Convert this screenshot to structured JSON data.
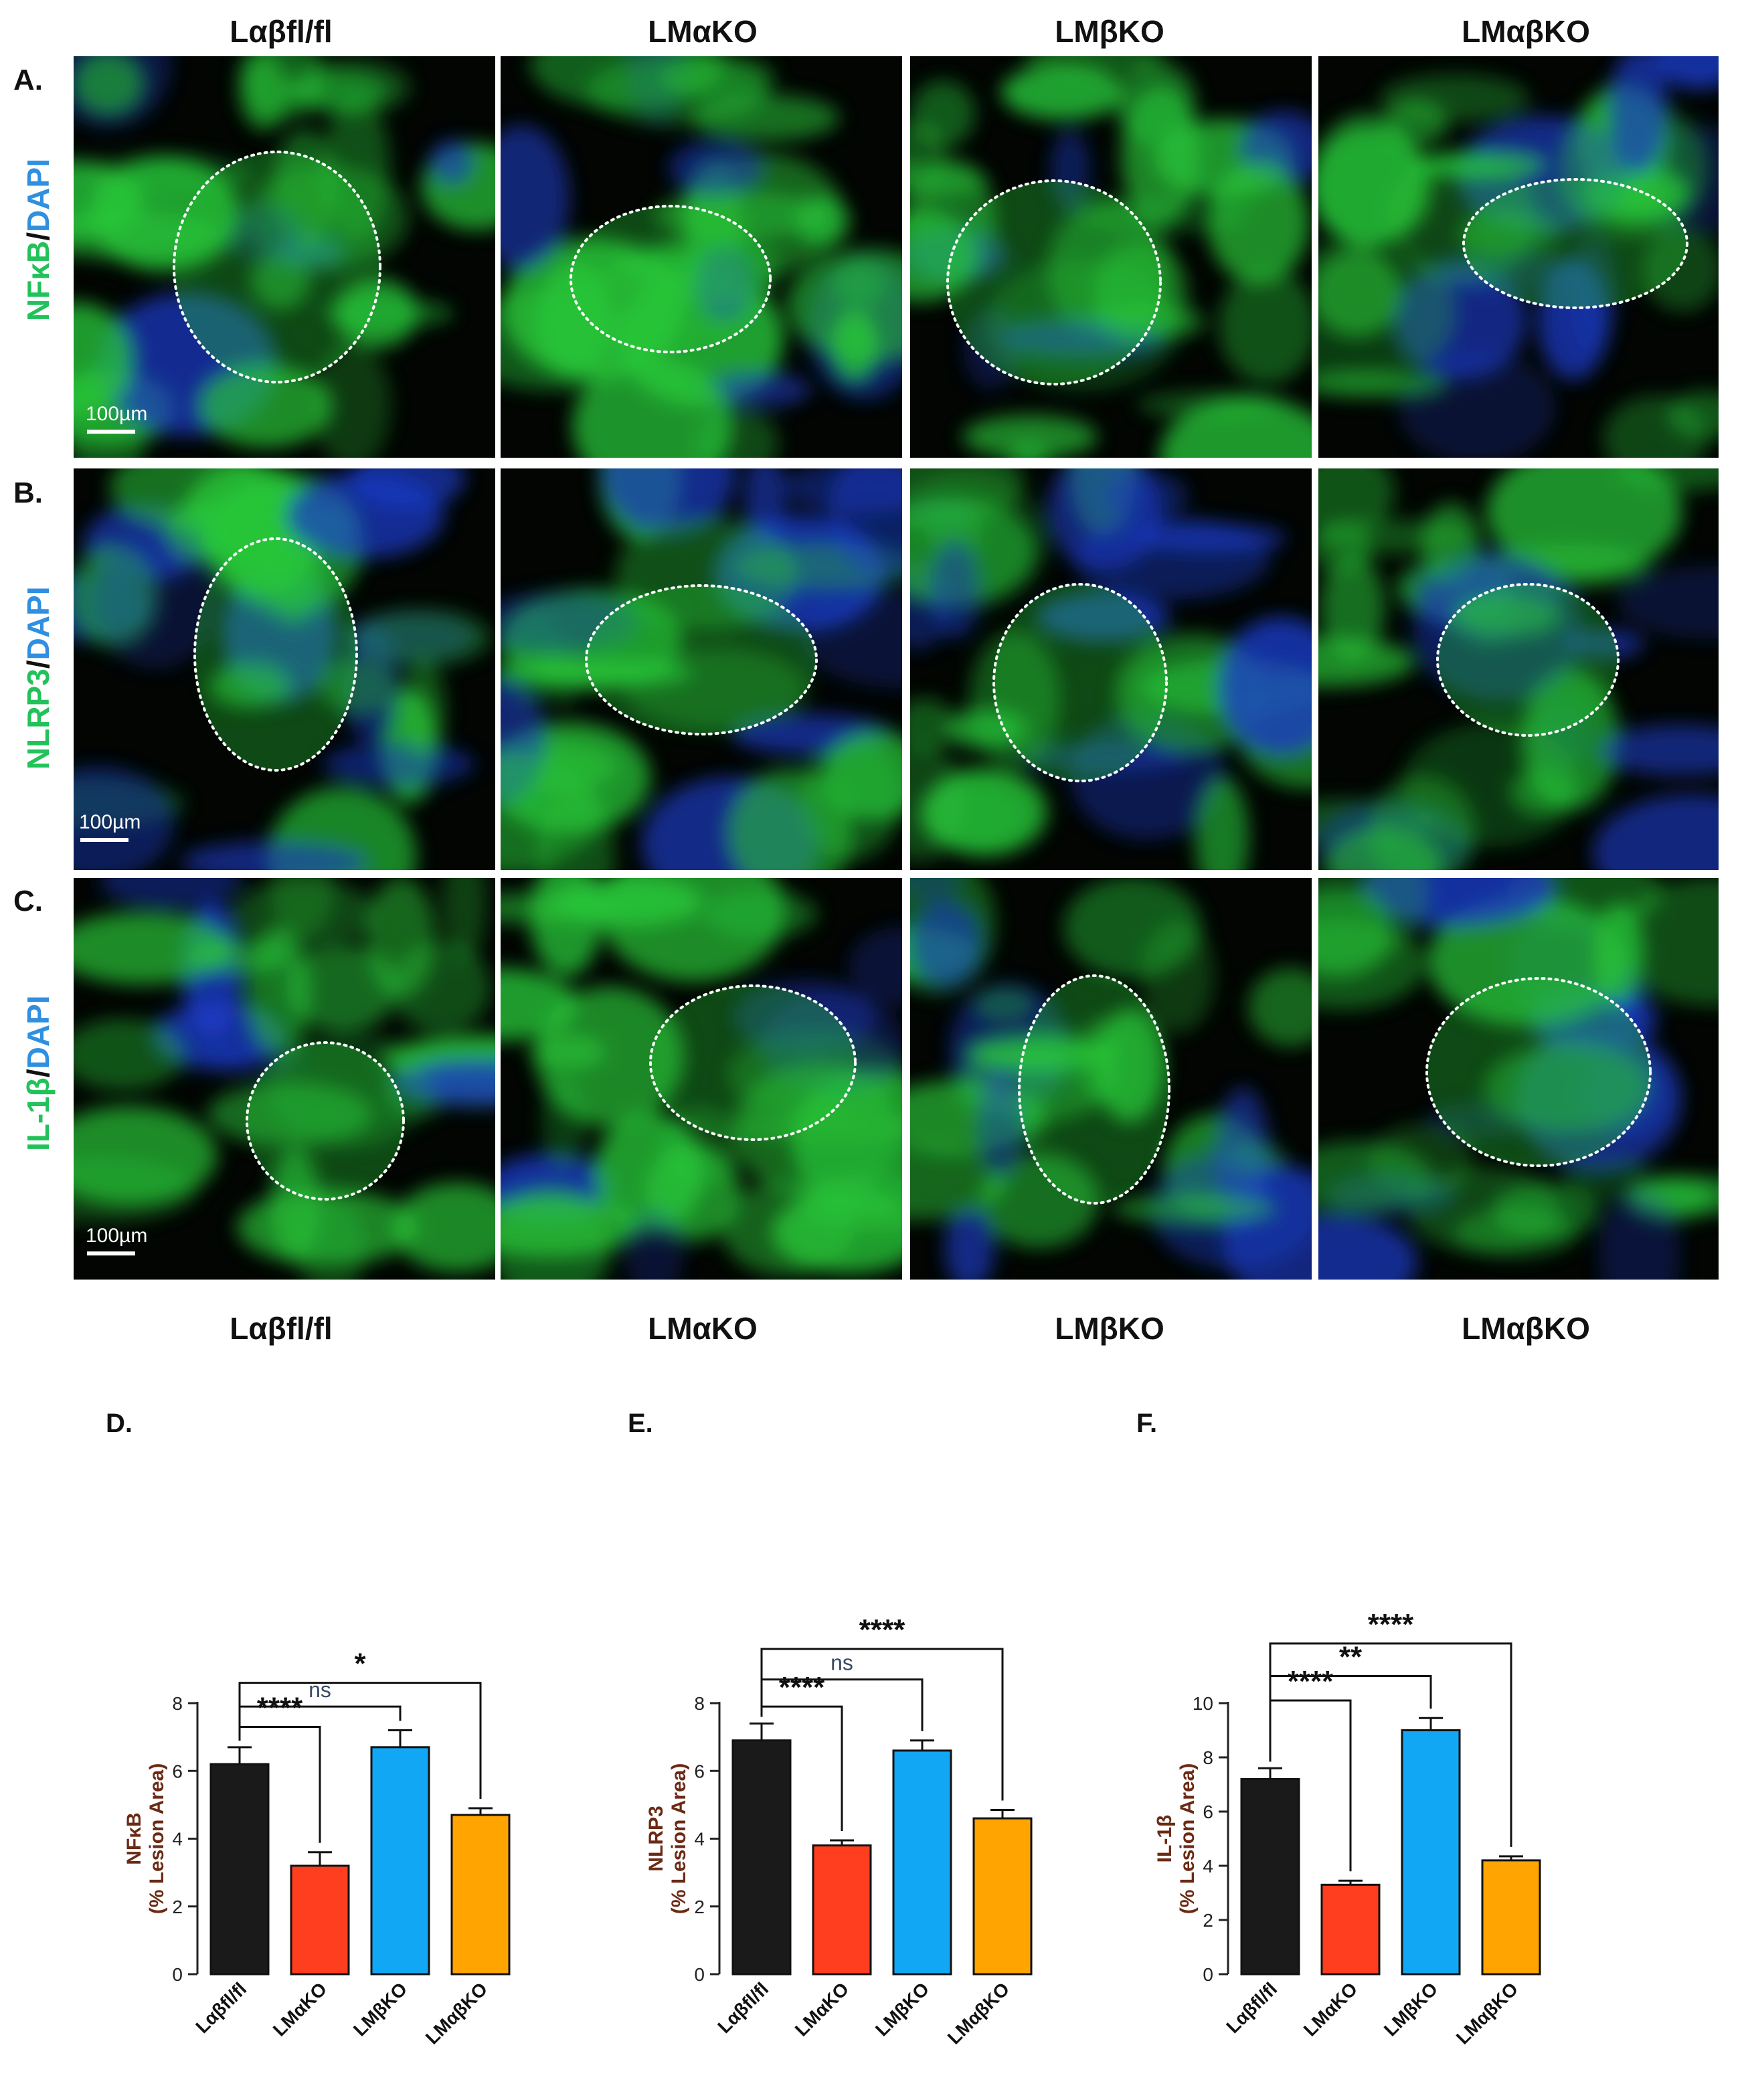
{
  "columns": [
    "Lαβfl/fl",
    "LMαKO",
    "LMβKO",
    "LMαβKO"
  ],
  "rows": [
    {
      "letter": "A.",
      "marker": "NFκB",
      "sep": "/",
      "dapi": "DAPI",
      "scale": "100µm"
    },
    {
      "letter": "B.",
      "marker": "NLRP3",
      "sep": "/",
      "dapi": "DAPI",
      "scale": "100µm"
    },
    {
      "letter": "C.",
      "marker": "IL-1β",
      "sep": "/",
      "dapi": "DAPI",
      "scale": "100µm"
    }
  ],
  "colors": {
    "bar": [
      "#1a1a1a",
      "#ff3d1f",
      "#12a7f5",
      "#ffa400"
    ],
    "stain": "#28c83a",
    "dapi": "#1b3cc8"
  },
  "chart_data": [
    {
      "type": "bar",
      "panel_label": "D.",
      "categories": [
        "Lαβfl/fl",
        "LMαKO",
        "LMβKO",
        "LMαβKO"
      ],
      "values": [
        6.2,
        3.2,
        6.7,
        4.7
      ],
      "errors": [
        0.5,
        0.4,
        0.5,
        0.2
      ],
      "ylabel_line1": "NFκB",
      "ylabel_line2": "(% Lesion Area)",
      "ylim": [
        0,
        8
      ],
      "yticks": [
        0,
        2,
        4,
        6,
        8
      ],
      "comparisons": [
        {
          "to": 1,
          "label": "****",
          "level": 7.3
        },
        {
          "to": 2,
          "label": "ns",
          "level": 7.9
        },
        {
          "to": 3,
          "label": "*",
          "level": 8.6
        }
      ]
    },
    {
      "type": "bar",
      "panel_label": "E.",
      "categories": [
        "Lαβfl/fl",
        "LMαKO",
        "LMβKO",
        "LMαβKO"
      ],
      "values": [
        6.9,
        3.8,
        6.6,
        4.6
      ],
      "errors": [
        0.5,
        0.15,
        0.3,
        0.25
      ],
      "ylabel_line1": "NLRP3",
      "ylabel_line2": "(% Lesion Area)",
      "ylim": [
        0,
        8
      ],
      "yticks": [
        0,
        2,
        4,
        6,
        8
      ],
      "comparisons": [
        {
          "to": 1,
          "label": "****",
          "level": 7.9
        },
        {
          "to": 2,
          "label": "ns",
          "level": 8.7
        },
        {
          "to": 3,
          "label": "****",
          "level": 9.6
        }
      ]
    },
    {
      "type": "bar",
      "panel_label": "F.",
      "categories": [
        "Lαβfl/fl",
        "LMαKO",
        "LMβKO",
        "LMαβKO"
      ],
      "values": [
        7.2,
        3.3,
        9.0,
        4.2
      ],
      "errors": [
        0.4,
        0.15,
        0.45,
        0.15
      ],
      "ylabel_line1": "IL-1β",
      "ylabel_line2": "(% Lesion Area)",
      "ylim": [
        0,
        10
      ],
      "yticks": [
        0,
        2,
        4,
        6,
        8,
        10
      ],
      "comparisons": [
        {
          "to": 1,
          "label": "****",
          "level": 10.1
        },
        {
          "to": 2,
          "label": "**",
          "level": 11.0
        },
        {
          "to": 3,
          "label": "****",
          "level": 12.2
        }
      ]
    }
  ]
}
